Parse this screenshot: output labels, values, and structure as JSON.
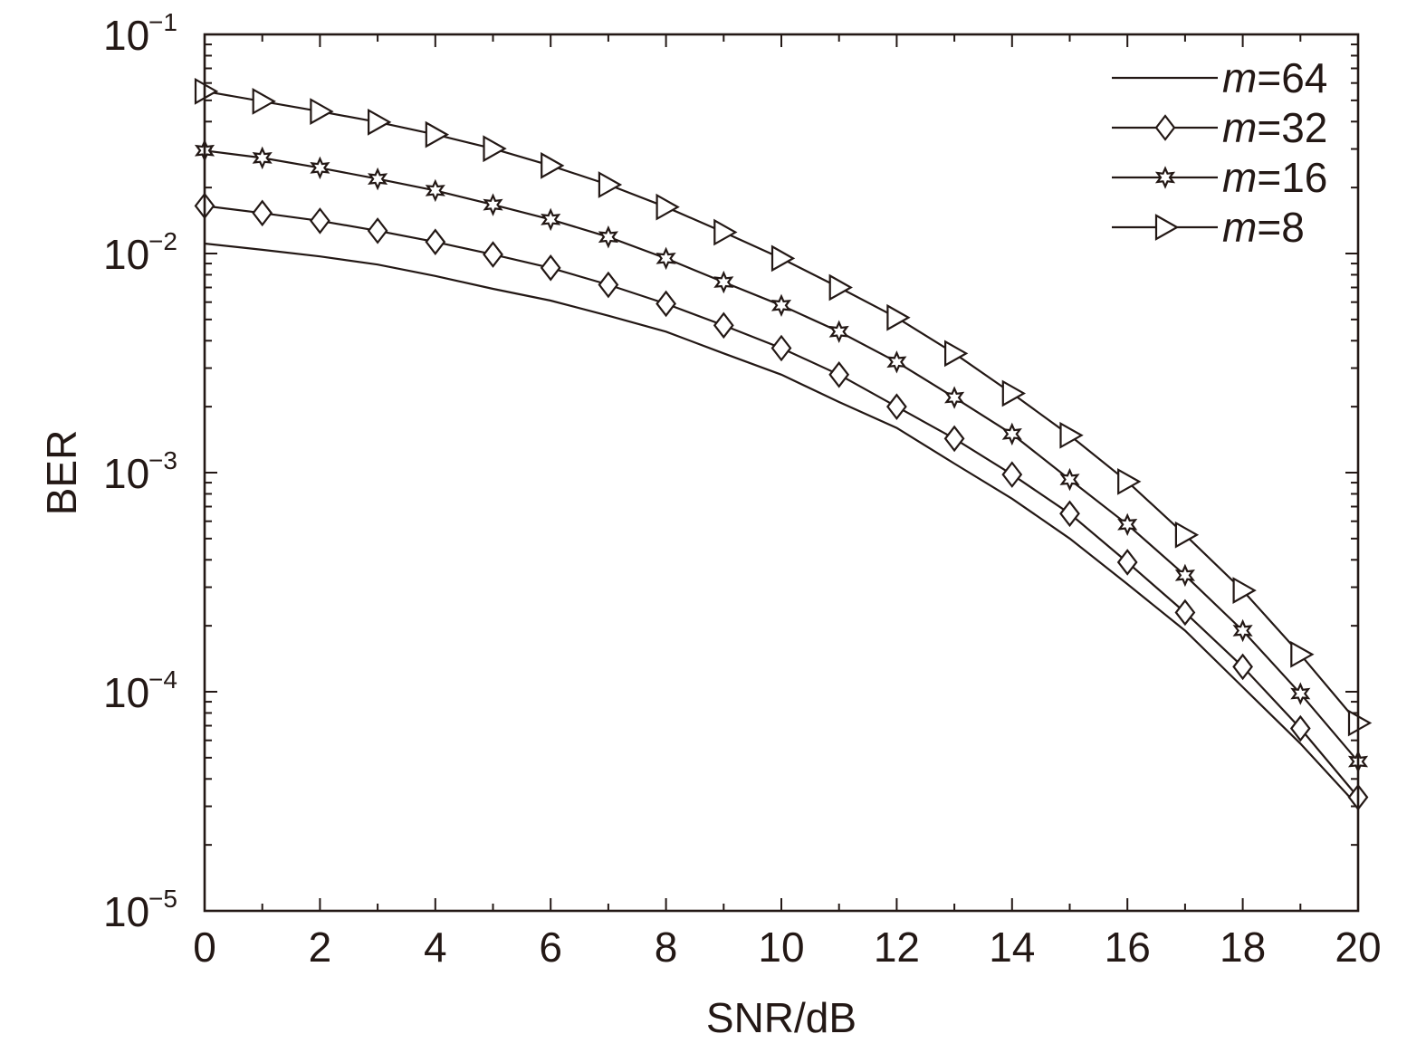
{
  "chart_data": {
    "type": "line",
    "xlabel": "SNR/dB",
    "ylabel": "BER",
    "xlim": [
      0,
      20
    ],
    "ylim": [
      1e-05,
      0.1
    ],
    "yscale": "log",
    "x_ticks": [
      "0",
      "2",
      "4",
      "6",
      "8",
      "10",
      "12",
      "14",
      "16",
      "18",
      "20"
    ],
    "y_ticks": [
      {
        "base": "10",
        "exp": "−1"
      },
      {
        "base": "10",
        "exp": "−2"
      },
      {
        "base": "10",
        "exp": "−3"
      },
      {
        "base": "10",
        "exp": "−4"
      },
      {
        "base": "10",
        "exp": "−5"
      }
    ],
    "legend_position": "top-right",
    "x": [
      0,
      1,
      2,
      3,
      4,
      5,
      6,
      7,
      8,
      9,
      10,
      11,
      12,
      13,
      14,
      15,
      16,
      17,
      18,
      19,
      20
    ],
    "series": [
      {
        "var": "m",
        "eq": "=64",
        "marker": "none",
        "values": [
          0.0111,
          0.0104,
          0.0097,
          0.0089,
          0.0079,
          0.0069,
          0.0061,
          0.0052,
          0.0044,
          0.0035,
          0.0028,
          0.0021,
          0.0016,
          0.0011,
          0.00076,
          0.0005,
          0.00031,
          0.00019,
          0.000105,
          5.8e-05,
          3e-05
        ]
      },
      {
        "var": "m",
        "eq": "=32",
        "marker": "diamond",
        "values": [
          0.0165,
          0.0153,
          0.0141,
          0.0127,
          0.0113,
          0.0099,
          0.0086,
          0.0072,
          0.0059,
          0.0047,
          0.0037,
          0.0028,
          0.002,
          0.00143,
          0.00098,
          0.00065,
          0.00039,
          0.00023,
          0.00013,
          6.8e-05,
          3.3e-05
        ]
      },
      {
        "var": "m",
        "eq": "=16",
        "marker": "star",
        "values": [
          0.0295,
          0.0273,
          0.0246,
          0.0219,
          0.0194,
          0.0167,
          0.0143,
          0.0119,
          0.0095,
          0.0074,
          0.0058,
          0.0044,
          0.0032,
          0.0022,
          0.0015,
          0.00093,
          0.00058,
          0.00034,
          0.00019,
          9.8e-05,
          4.8e-05
        ]
      },
      {
        "var": "m",
        "eq": "=8",
        "marker": "triangle-right",
        "values": [
          0.055,
          0.0495,
          0.0445,
          0.0398,
          0.0349,
          0.0301,
          0.0252,
          0.0206,
          0.0163,
          0.0125,
          0.0095,
          0.007,
          0.0051,
          0.0035,
          0.0023,
          0.00148,
          0.00091,
          0.00052,
          0.00029,
          0.000148,
          7.2e-05
        ]
      }
    ]
  }
}
